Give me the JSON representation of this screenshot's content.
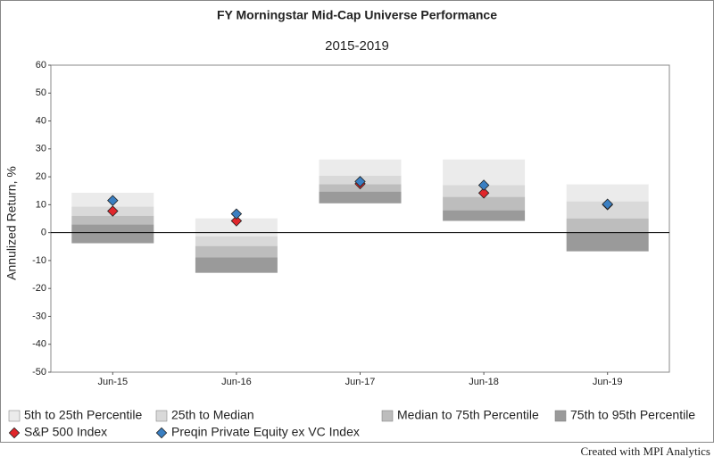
{
  "chart_data": {
    "type": "percentile",
    "title": "FY Morningstar Mid-Cap Universe Performance",
    "subtitle": "2015-2019",
    "y_label": "Annulized Return, %",
    "footer": "Created with MPI Analytics",
    "categories": [
      "Jun-15",
      "Jun-16",
      "Jun-17",
      "Jun-18",
      "Jun-19"
    ],
    "ylim": [
      -50,
      60
    ],
    "yticks": [
      -50,
      -40,
      -30,
      -20,
      -10,
      0,
      10,
      20,
      30,
      40,
      50,
      60
    ],
    "bands": [
      {
        "name": "5th to 25th Percentile",
        "color": "#ebebeb",
        "values": [
          [
            14.3,
            9.3
          ],
          [
            5.1,
            -1.3
          ],
          [
            26.2,
            20.4
          ],
          [
            26.2,
            17
          ],
          [
            17.3,
            11.2
          ]
        ]
      },
      {
        "name": "25th to Median",
        "color": "#d9d9d9",
        "values": [
          [
            9.3,
            6
          ],
          [
            -1.3,
            -4.8
          ],
          [
            20.4,
            17.3
          ],
          [
            17,
            12.8
          ],
          [
            11.2,
            5.1
          ]
        ]
      },
      {
        "name": "Median to 75th Percentile",
        "color": "#bdbdbd",
        "values": [
          [
            6,
            2.9
          ],
          [
            -4.8,
            -8.9
          ],
          [
            17.3,
            14.7
          ],
          [
            12.8,
            8
          ],
          [
            5.1,
            0
          ]
        ]
      },
      {
        "name": "75th to 95th Percentile",
        "color": "#9a9a9a",
        "values": [
          [
            2.9,
            -3.8
          ],
          [
            -8.9,
            -14.4
          ],
          [
            14.7,
            10.5
          ],
          [
            8,
            4.2
          ],
          [
            0,
            -6.7
          ]
        ]
      }
    ],
    "series": [
      {
        "name": "S&P 500 Index",
        "color": "#e0262b",
        "values": [
          7.7,
          4.2,
          17.5,
          14.2,
          10
        ]
      },
      {
        "name": "Preqin Private Equity ex VC Index",
        "color": "#3a7fc2",
        "values": [
          11.5,
          6.7,
          18.3,
          17,
          10.2
        ]
      }
    ]
  }
}
